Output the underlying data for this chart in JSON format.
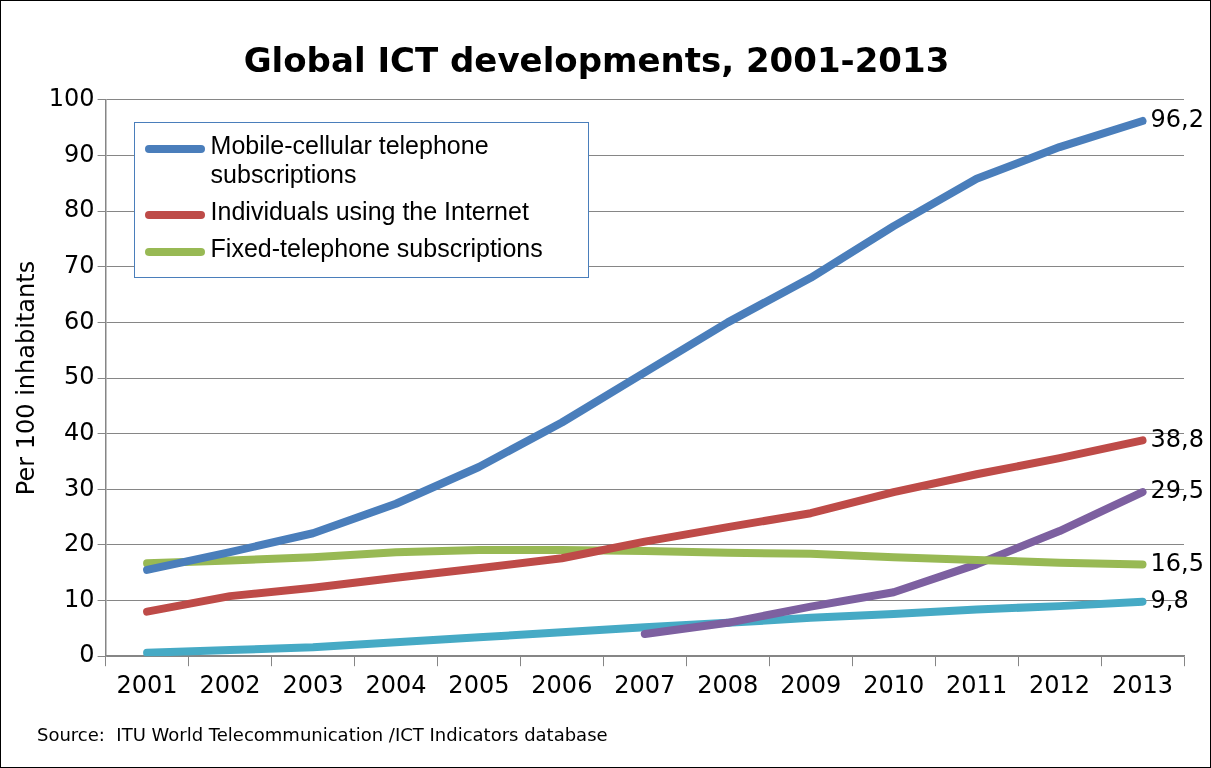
{
  "chart_data": {
    "type": "line",
    "title": "Global ICT developments, 2001-2013",
    "ylabel": "Per 100 inhabitants",
    "categories": [
      "2001",
      "2002",
      "2003",
      "2004",
      "2005",
      "2006",
      "2007",
      "2008",
      "2009",
      "2010",
      "2011",
      "2012",
      "2013"
    ],
    "series": [
      {
        "name": "Mobile-cellular telephone subscriptions",
        "color": "#4a7ebb",
        "values": [
          15.5,
          18.7,
          22.1,
          27.4,
          34,
          42,
          51,
          60,
          68,
          77.3,
          85.8,
          91.5,
          96.2
        ],
        "value_labels": [
          null,
          null,
          null,
          null,
          null,
          null,
          null,
          null,
          null,
          null,
          null,
          null,
          "96,2"
        ]
      },
      {
        "name": "Individuals using the Internet",
        "color": "#be4b48",
        "values": [
          8,
          10.8,
          12.3,
          14.1,
          15.8,
          17.6,
          20.6,
          23.2,
          25.7,
          29.5,
          32.7,
          35.6,
          38.8
        ],
        "value_labels": [
          null,
          null,
          null,
          null,
          null,
          null,
          null,
          null,
          null,
          null,
          null,
          null,
          "38,8"
        ]
      },
      {
        "name": "Fixed-telephone subscriptions",
        "color": "#98b954",
        "values": [
          16.7,
          17.2,
          17.8,
          18.7,
          19.1,
          19.1,
          18.9,
          18.6,
          18.4,
          17.8,
          17.3,
          16.8,
          16.5
        ],
        "value_labels": [
          null,
          null,
          null,
          null,
          null,
          null,
          null,
          null,
          null,
          null,
          null,
          null,
          "16,5"
        ]
      },
      {
        "color": "#7d60a0",
        "values": [
          null,
          null,
          null,
          null,
          null,
          null,
          4,
          6,
          8.9,
          11.5,
          16.5,
          22.5,
          29.5
        ],
        "value_labels": [
          null,
          null,
          null,
          null,
          null,
          null,
          null,
          null,
          null,
          null,
          null,
          null,
          "29,5"
        ]
      },
      {
        "color": "#46aac5",
        "values": [
          0.6,
          1.1,
          1.6,
          2.5,
          3.4,
          4.3,
          5.2,
          6.0,
          6.9,
          7.6,
          8.4,
          9.0,
          9.8
        ],
        "value_labels": [
          null,
          null,
          null,
          null,
          null,
          null,
          null,
          null,
          null,
          null,
          null,
          null,
          "9,8"
        ]
      }
    ],
    "ylim": [
      0,
      100
    ],
    "yticks": [
      0,
      10,
      20,
      30,
      40,
      50,
      60,
      70,
      80,
      90,
      100
    ],
    "grid": "y",
    "legend": "top left",
    "marker": "none",
    "line_style": "solid",
    "annotations": [
      "Source:  ITU World Telecommunication /ICT Indicators database"
    ]
  }
}
